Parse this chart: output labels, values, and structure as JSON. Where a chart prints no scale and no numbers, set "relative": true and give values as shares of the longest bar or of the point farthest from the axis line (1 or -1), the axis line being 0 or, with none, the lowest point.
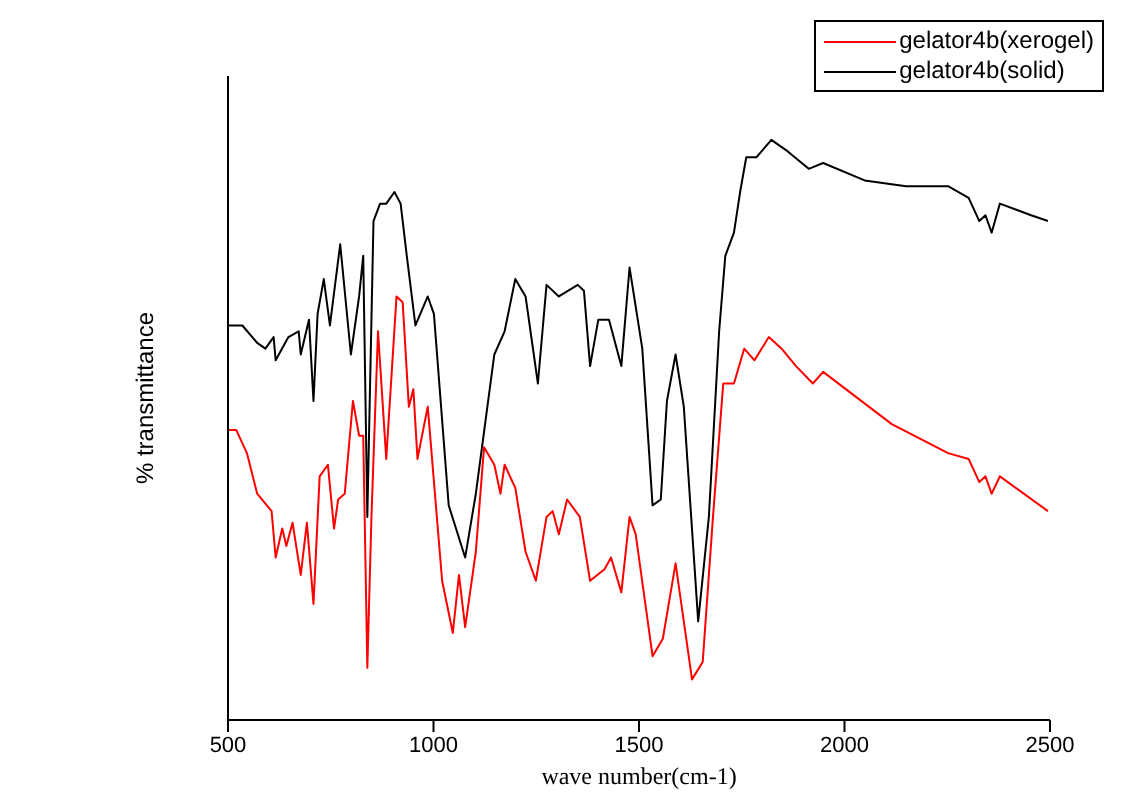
{
  "chart_data": {
    "type": "line",
    "relative": true,
    "xlabel": "wave number(cm-1)",
    "ylabel": "% transmittance",
    "xlim": [
      500,
      2500
    ],
    "xticks": [
      500,
      1000,
      1500,
      2000,
      2500
    ],
    "legend": "top right",
    "marker": "none",
    "line_style": "solid",
    "series": [
      {
        "name": "gelator4b(xerogel)",
        "color": "#ff0000",
        "x": [
          500,
          520,
          546,
          571,
          606,
          616,
          632,
          642,
          657,
          677,
          692,
          708,
          723,
          743,
          758,
          768,
          784,
          804,
          819,
          829,
          839,
          849,
          865,
          885,
          910,
          925,
          940,
          951,
          961,
          986,
          1021,
          1047,
          1062,
          1077,
          1103,
          1123,
          1148,
          1163,
          1173,
          1199,
          1224,
          1249,
          1275,
          1290,
          1305,
          1325,
          1356,
          1381,
          1416,
          1432,
          1457,
          1477,
          1492,
          1533,
          1558,
          1589,
          1629,
          1655,
          1680,
          1705,
          1731,
          1756,
          1781,
          1816,
          1847,
          1882,
          1923,
          1948,
          2115,
          2252,
          2302,
          2328,
          2343,
          2358,
          2378,
          2495
        ],
        "values": [
          0.5,
          0.5,
          0.46,
          0.39,
          0.36,
          0.28,
          0.33,
          0.3,
          0.34,
          0.25,
          0.34,
          0.2,
          0.42,
          0.44,
          0.33,
          0.38,
          0.39,
          0.55,
          0.49,
          0.49,
          0.09,
          0.35,
          0.67,
          0.45,
          0.73,
          0.72,
          0.54,
          0.57,
          0.45,
          0.54,
          0.24,
          0.15,
          0.25,
          0.16,
          0.29,
          0.47,
          0.44,
          0.39,
          0.44,
          0.4,
          0.29,
          0.24,
          0.35,
          0.36,
          0.32,
          0.38,
          0.35,
          0.24,
          0.26,
          0.28,
          0.22,
          0.35,
          0.32,
          0.11,
          0.14,
          0.27,
          0.07,
          0.1,
          0.35,
          0.58,
          0.58,
          0.64,
          0.62,
          0.66,
          0.64,
          0.61,
          0.58,
          0.6,
          0.51,
          0.46,
          0.45,
          0.41,
          0.42,
          0.39,
          0.42,
          0.36
        ]
      },
      {
        "name": "gelator4b(solid)",
        "color": "#000000",
        "x": [
          500,
          535,
          571,
          591,
          611,
          616,
          647,
          672,
          677,
          697,
          708,
          718,
          733,
          748,
          773,
          799,
          819,
          829,
          839,
          854,
          870,
          885,
          905,
          920,
          935,
          956,
          986,
          1001,
          1037,
          1077,
          1103,
          1148,
          1173,
          1199,
          1224,
          1254,
          1275,
          1305,
          1351,
          1366,
          1381,
          1401,
          1427,
          1457,
          1477,
          1508,
          1533,
          1553,
          1568,
          1589,
          1609,
          1644,
          1670,
          1695,
          1710,
          1731,
          1746,
          1761,
          1786,
          1822,
          1862,
          1913,
          1948,
          2049,
          2150,
          2252,
          2302,
          2328,
          2343,
          2358,
          2378,
          2454,
          2495
        ],
        "values": [
          0.68,
          0.68,
          0.65,
          0.64,
          0.66,
          0.62,
          0.66,
          0.67,
          0.63,
          0.69,
          0.55,
          0.7,
          0.76,
          0.68,
          0.82,
          0.63,
          0.73,
          0.8,
          0.35,
          0.86,
          0.89,
          0.89,
          0.91,
          0.89,
          0.8,
          0.68,
          0.73,
          0.7,
          0.37,
          0.28,
          0.39,
          0.63,
          0.67,
          0.76,
          0.73,
          0.58,
          0.75,
          0.73,
          0.75,
          0.74,
          0.61,
          0.69,
          0.69,
          0.61,
          0.78,
          0.64,
          0.37,
          0.38,
          0.55,
          0.63,
          0.54,
          0.17,
          0.35,
          0.67,
          0.8,
          0.84,
          0.91,
          0.97,
          0.97,
          1.0,
          0.98,
          0.95,
          0.96,
          0.93,
          0.92,
          0.92,
          0.9,
          0.86,
          0.87,
          0.84,
          0.89,
          0.87,
          0.86
        ]
      }
    ]
  }
}
